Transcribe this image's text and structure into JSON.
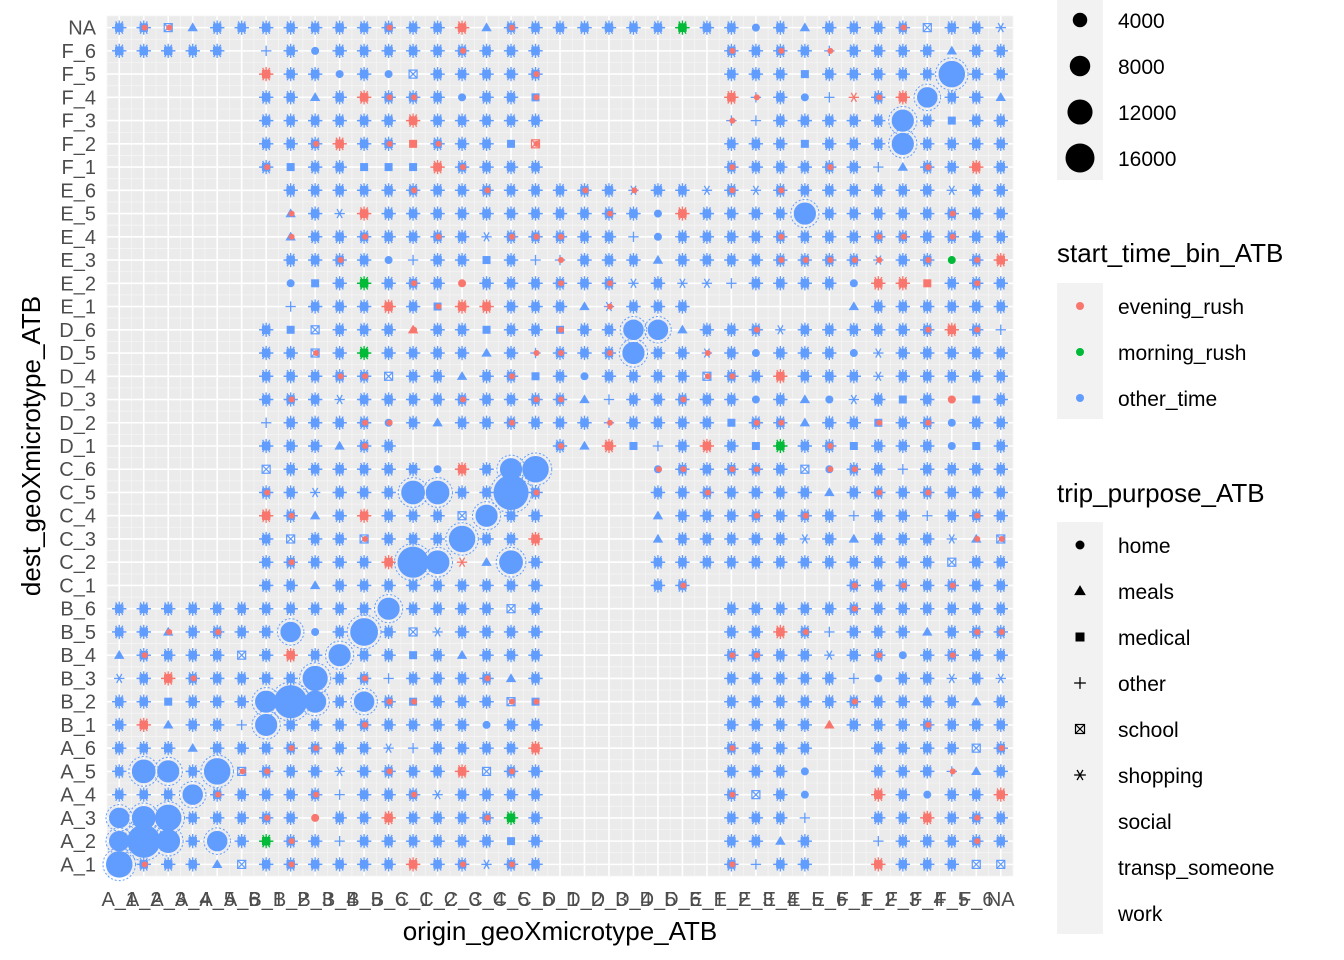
{
  "chart_data": {
    "type": "scatter",
    "xlabel": "origin_geoXmicrotype_ATB",
    "ylabel": "dest_geoXmicrotype_ATB",
    "categories": [
      "A_1",
      "A_2",
      "A_3",
      "A_4",
      "A_5",
      "A_6",
      "B_1",
      "B_2",
      "B_3",
      "B_4",
      "B_5",
      "B_6",
      "C_1",
      "C_2",
      "C_3",
      "C_4",
      "C_5",
      "C_6",
      "D_1",
      "D_2",
      "D_3",
      "D_4",
      "D_5",
      "D_6",
      "E_1",
      "E_2",
      "E_3",
      "E_4",
      "E_5",
      "E_6",
      "F_1",
      "F_2",
      "F_3",
      "F_4",
      "F_5",
      "F_6",
      "NA"
    ],
    "grid": true,
    "legends": {
      "size": {
        "title": "",
        "values": [
          4000,
          8000,
          12000,
          16000
        ]
      },
      "color": {
        "title": "start_time_bin_ATB",
        "items": [
          {
            "label": "evening_rush",
            "color": "#F8766D"
          },
          {
            "label": "morning_rush",
            "color": "#00BA38"
          },
          {
            "label": "other_time",
            "color": "#619CFF"
          }
        ]
      },
      "shape": {
        "title": "trip_purpose_ATB",
        "items": [
          {
            "label": "home",
            "shape": "circle"
          },
          {
            "label": "meals",
            "shape": "triangle"
          },
          {
            "label": "medical",
            "shape": "square"
          },
          {
            "label": "other",
            "shape": "plus"
          },
          {
            "label": "school",
            "shape": "square-cross"
          },
          {
            "label": "shopping",
            "shape": "asterisk"
          },
          {
            "label": "social",
            "shape": "none"
          },
          {
            "label": "transp_someone",
            "shape": "none"
          },
          {
            "label": "work",
            "shape": "none"
          }
        ]
      }
    },
    "big_points": [
      {
        "x": "A_1",
        "y": "A_1",
        "value": 8000
      },
      {
        "x": "A_2",
        "y": "A_2",
        "value": 14000
      },
      {
        "x": "A_1",
        "y": "A_2",
        "value": 4000
      },
      {
        "x": "A_2",
        "y": "A_3",
        "value": 6000
      },
      {
        "x": "A_3",
        "y": "A_3",
        "value": 8000
      },
      {
        "x": "A_3",
        "y": "A_2",
        "value": 6000
      },
      {
        "x": "A_2",
        "y": "A_5",
        "value": 6000
      },
      {
        "x": "A_3",
        "y": "A_5",
        "value": 5000
      },
      {
        "x": "A_5",
        "y": "A_5",
        "value": 8000
      },
      {
        "x": "A_5",
        "y": "A_2",
        "value": 4000
      },
      {
        "x": "A_4",
        "y": "A_4",
        "value": 4000
      },
      {
        "x": "A_1",
        "y": "A_3",
        "value": 4000
      },
      {
        "x": "B_2",
        "y": "B_2",
        "value": 14000
      },
      {
        "x": "B_3",
        "y": "B_3",
        "value": 7000
      },
      {
        "x": "B_4",
        "y": "B_4",
        "value": 5000
      },
      {
        "x": "B_5",
        "y": "B_5",
        "value": 9000
      },
      {
        "x": "B_6",
        "y": "B_6",
        "value": 5000
      },
      {
        "x": "B_1",
        "y": "B_1",
        "value": 5000
      },
      {
        "x": "B_1",
        "y": "B_2",
        "value": 5000
      },
      {
        "x": "B_2",
        "y": "B_5",
        "value": 4000
      },
      {
        "x": "B_3",
        "y": "B_2",
        "value": 5000
      },
      {
        "x": "B_5",
        "y": "B_2",
        "value": 4000
      },
      {
        "x": "C_1",
        "y": "C_2",
        "value": 12000
      },
      {
        "x": "C_2",
        "y": "C_2",
        "value": 6000
      },
      {
        "x": "C_1",
        "y": "C_5",
        "value": 6000
      },
      {
        "x": "C_2",
        "y": "C_5",
        "value": 6000
      },
      {
        "x": "C_3",
        "y": "C_3",
        "value": 8000
      },
      {
        "x": "C_4",
        "y": "C_4",
        "value": 5000
      },
      {
        "x": "C_5",
        "y": "C_5",
        "value": 16000
      },
      {
        "x": "C_6",
        "y": "C_6",
        "value": 8000
      },
      {
        "x": "C_5",
        "y": "C_6",
        "value": 5000
      },
      {
        "x": "C_5",
        "y": "C_2",
        "value": 6000
      },
      {
        "x": "D_4",
        "y": "D_6",
        "value": 4000
      },
      {
        "x": "D_5",
        "y": "D_6",
        "value": 4000
      },
      {
        "x": "D_4",
        "y": "D_5",
        "value": 5000
      },
      {
        "x": "E_5",
        "y": "E_5",
        "value": 5000
      },
      {
        "x": "F_3",
        "y": "F_2",
        "value": 5000
      },
      {
        "x": "F_3",
        "y": "F_3",
        "value": 5000
      },
      {
        "x": "F_5",
        "y": "F_5",
        "value": 8000
      },
      {
        "x": "F_4",
        "y": "F_4",
        "value": 4000
      }
    ],
    "empty_blocks": [
      {
        "x0": "A_1",
        "x1": "A_6",
        "y0": "C_1",
        "y1": "F_5"
      },
      {
        "x0": "A_6",
        "x1": "A_6",
        "y0": "C_1",
        "y1": "F_6"
      },
      {
        "x0": "B_1",
        "x1": "B_1",
        "y0": "E_1",
        "y1": "E_6"
      },
      {
        "x0": "C_1",
        "x1": "C_6",
        "y0": "D_1",
        "y1": "D_1"
      },
      {
        "x0": "D_1",
        "x1": "D_6",
        "y0": "A_1",
        "y1": "A_6"
      },
      {
        "x0": "D_1",
        "x1": "D_6",
        "y0": "B_1",
        "y1": "B_6"
      },
      {
        "x0": "D_1",
        "x1": "D_4",
        "y0": "C_1",
        "y1": "C_6"
      },
      {
        "x0": "E_1",
        "x1": "E_6",
        "y0": "E_1",
        "y1": "E_1"
      },
      {
        "x0": "E_1",
        "x1": "E_1",
        "y0": "A_1",
        "y1": "B_6"
      },
      {
        "x0": "E_1",
        "x1": "E_6",
        "y0": "C_1",
        "y1": "C_1"
      },
      {
        "x0": "E_1",
        "x1": "E_1",
        "y0": "F_1",
        "y1": "F_6"
      },
      {
        "x0": "D_1",
        "x1": "D_6",
        "y0": "F_1",
        "y1": "F_6"
      },
      {
        "x0": "E_6",
        "x1": "F_1",
        "y0": "A_1",
        "y1": "A_6"
      }
    ]
  }
}
